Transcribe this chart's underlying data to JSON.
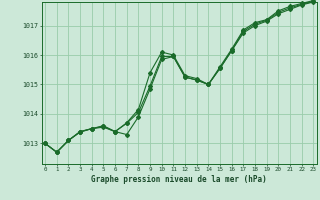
{
  "title": "Graphe pression niveau de la mer (hPa)",
  "background_color": "#cce8d8",
  "grid_color": "#99ccaa",
  "line_color": "#1a6b2a",
  "marker_color": "#1a6b2a",
  "x_ticks": [
    0,
    1,
    2,
    3,
    4,
    5,
    6,
    7,
    8,
    9,
    10,
    11,
    12,
    13,
    14,
    15,
    16,
    17,
    18,
    19,
    20,
    21,
    22,
    23
  ],
  "y_ticks": [
    1013,
    1014,
    1015,
    1016,
    1017
  ],
  "ylim": [
    1012.3,
    1017.8
  ],
  "xlim": [
    -0.3,
    23.3
  ],
  "series1": [
    1013.0,
    1012.7,
    1013.1,
    1013.4,
    1013.5,
    1013.6,
    1013.4,
    1013.7,
    1014.15,
    1015.4,
    1016.1,
    1016.0,
    1015.3,
    1015.2,
    1015.0,
    1015.6,
    1016.2,
    1016.85,
    1017.1,
    1017.2,
    1017.5,
    1017.65,
    1017.75,
    1017.85
  ],
  "series2": [
    1013.0,
    1012.7,
    1013.1,
    1013.4,
    1013.5,
    1013.55,
    1013.4,
    1013.3,
    1013.9,
    1014.85,
    1015.85,
    1015.95,
    1015.25,
    1015.15,
    1015.0,
    1015.55,
    1016.15,
    1016.75,
    1017.0,
    1017.15,
    1017.4,
    1017.55,
    1017.7,
    1017.8
  ],
  "series3": [
    1013.0,
    1012.7,
    1013.1,
    1013.38,
    1013.5,
    1013.58,
    1013.4,
    1013.68,
    1014.05,
    1014.95,
    1015.95,
    1015.95,
    1015.25,
    1015.15,
    1015.0,
    1015.55,
    1016.15,
    1016.8,
    1017.05,
    1017.18,
    1017.45,
    1017.6,
    1017.72,
    1017.82
  ]
}
